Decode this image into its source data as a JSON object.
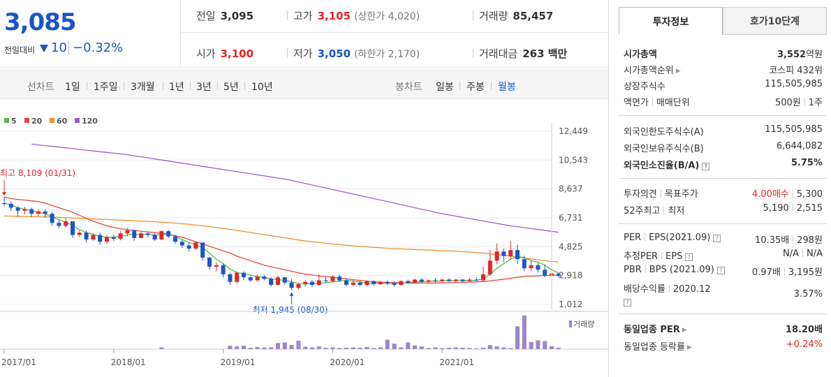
{
  "price": {
    "current": "3,085",
    "change_label": "전일대비",
    "change_amount": "10",
    "change_pct": "−0.32%",
    "down_color": "#1a56c8",
    "up_color": "#e2262a"
  },
  "summary": {
    "prev_close": {
      "label": "전일",
      "value": "3,095"
    },
    "high": {
      "label": "고가",
      "value": "3,105",
      "sub": "(상한가 4,020)"
    },
    "volume": {
      "label": "거래량",
      "value": "85,457"
    },
    "open": {
      "label": "시가",
      "value": "3,100"
    },
    "low": {
      "label": "저가",
      "value": "3,050",
      "sub": "(하한가 2,170)"
    },
    "trade_value": {
      "label": "거래대금",
      "value": "263 백만"
    }
  },
  "period_bar": {
    "line_title": "선차트",
    "line_items": [
      "1일",
      "1주일",
      "3개월",
      "1년",
      "3년",
      "5년",
      "10년"
    ],
    "candle_title": "봉차트",
    "candle_items": [
      "일봉",
      "주봉",
      "월봉"
    ],
    "candle_active": "월봉"
  },
  "chart_data": {
    "type": "candlestick",
    "legend": [
      {
        "name": "5",
        "color": "#57b84a"
      },
      {
        "name": "20",
        "color": "#e8473e"
      },
      {
        "name": "60",
        "color": "#f0902f"
      },
      {
        "name": "120",
        "color": "#a25bd0"
      }
    ],
    "y_ticks": [
      "12,449",
      "10,543",
      "8,637",
      "6,731",
      "4,825",
      "2,918",
      "1,012"
    ],
    "y_tick_values": [
      12449,
      10543,
      8637,
      6731,
      4825,
      2918,
      1012
    ],
    "ylim": [
      1012,
      12449
    ],
    "x_ticks": [
      "2017/01",
      "2018/01",
      "2019/01",
      "2020/01",
      "2021/01"
    ],
    "volume_label": "거래량",
    "high_annotation": {
      "text": "최고 8,109 (01/31)",
      "value": 8109
    },
    "low_annotation": {
      "text": "최저 1,945 (08/30)",
      "value": 1945
    },
    "candles": [
      [
        7700,
        7650,
        8109,
        7500
      ],
      [
        7650,
        7400,
        7800,
        7200
      ],
      [
        7400,
        7200,
        7500,
        6800
      ],
      [
        7200,
        7300,
        7450,
        6950
      ],
      [
        7300,
        7000,
        7400,
        6800
      ],
      [
        7000,
        7150,
        7300,
        6850
      ],
      [
        7150,
        7000,
        7300,
        6750
      ],
      [
        7000,
        6400,
        7100,
        6200
      ],
      [
        6400,
        6200,
        6600,
        6050
      ],
      [
        6200,
        6500,
        6700,
        6100
      ],
      [
        6500,
        5600,
        6500,
        5400
      ],
      [
        5600,
        5750,
        5900,
        5450
      ],
      [
        5750,
        5300,
        5900,
        5100
      ],
      [
        5300,
        5600,
        5700,
        5200
      ],
      [
        5600,
        5150,
        5750,
        4950
      ],
      [
        5150,
        5450,
        5600,
        5000
      ],
      [
        5450,
        5350,
        5600,
        5200
      ],
      [
        5350,
        5700,
        5850,
        5250
      ],
      [
        5700,
        5900,
        6050,
        5500
      ],
      [
        5900,
        5400,
        5950,
        5200
      ],
      [
        5400,
        5700,
        5800,
        5350
      ],
      [
        5700,
        5600,
        5800,
        5450
      ],
      [
        5600,
        5300,
        5700,
        5200
      ],
      [
        5300,
        5850,
        5900,
        5250
      ],
      [
        5850,
        5500,
        5950,
        5400
      ],
      [
        5500,
        5150,
        5600,
        5000
      ],
      [
        5150,
        4900,
        5250,
        4750
      ],
      [
        4900,
        4700,
        5100,
        4500
      ],
      [
        4700,
        5100,
        5200,
        4600
      ],
      [
        5100,
        4100,
        5100,
        3900
      ],
      [
        4100,
        3500,
        4150,
        3300
      ],
      [
        3500,
        3600,
        3800,
        3200
      ],
      [
        3600,
        3000,
        3700,
        2800
      ],
      [
        3000,
        2500,
        3100,
        2300
      ],
      [
        2500,
        3100,
        3200,
        2400
      ],
      [
        3100,
        2800,
        3200,
        2600
      ],
      [
        2800,
        2600,
        2900,
        2500
      ],
      [
        2600,
        2850,
        3000,
        2550
      ],
      [
        2850,
        2700,
        2950,
        2600
      ],
      [
        2700,
        2300,
        2800,
        2200
      ],
      [
        2300,
        2800,
        2900,
        2250
      ],
      [
        2800,
        2450,
        2850,
        2300
      ],
      [
        2450,
        2100,
        2700,
        1945
      ],
      [
        2100,
        2350,
        2400,
        2000
      ],
      [
        2350,
        2500,
        2600,
        2200
      ],
      [
        2500,
        2300,
        2600,
        2150
      ],
      [
        2300,
        2600,
        3000,
        2250
      ],
      [
        2600,
        2550,
        2800,
        2400
      ],
      [
        2550,
        2850,
        2950,
        2450
      ],
      [
        2850,
        2600,
        3000,
        2500
      ],
      [
        2600,
        2300,
        2700,
        2200
      ],
      [
        2300,
        2450,
        2600,
        2250
      ],
      [
        2450,
        2300,
        2550,
        2200
      ],
      [
        2300,
        2550,
        2600,
        2200
      ],
      [
        2550,
        2350,
        2600,
        2250
      ],
      [
        2350,
        2500,
        2550,
        2300
      ],
      [
        2500,
        2400,
        2600,
        2300
      ],
      [
        2400,
        2300,
        2550,
        2200
      ],
      [
        2300,
        2550,
        2600,
        2250
      ],
      [
        2550,
        2450,
        2650,
        2350
      ],
      [
        2450,
        2650,
        2700,
        2400
      ],
      [
        2650,
        2500,
        2750,
        2450
      ],
      [
        2500,
        2600,
        2650,
        2400
      ],
      [
        2600,
        2550,
        2750,
        2450
      ],
      [
        2550,
        2650,
        2700,
        2500
      ],
      [
        2650,
        2550,
        2750,
        2500
      ],
      [
        2550,
        2650,
        2700,
        2450
      ],
      [
        2650,
        2550,
        2700,
        2450
      ],
      [
        2550,
        2650,
        2750,
        2500
      ],
      [
        2650,
        2600,
        2800,
        2550
      ],
      [
        2600,
        3000,
        3500,
        2550
      ],
      [
        3000,
        3900,
        4600,
        2900
      ],
      [
        3900,
        4500,
        5050,
        3650
      ],
      [
        4500,
        4200,
        4700,
        3800
      ],
      [
        4200,
        4600,
        5200,
        3950
      ],
      [
        4600,
        4000,
        4950,
        3700
      ],
      [
        4000,
        3400,
        4250,
        3200
      ],
      [
        3400,
        3600,
        3900,
        3200
      ],
      [
        3600,
        3300,
        3750,
        3100
      ],
      [
        3300,
        2900,
        3650,
        2800
      ],
      [
        2900,
        3050,
        3150,
        2850
      ],
      [
        3050,
        2900,
        3100,
        2800
      ]
    ],
    "ma5": [
      7700,
      7600,
      7400,
      7300,
      7200,
      7100,
      7000,
      6800,
      6600,
      6450,
      6200,
      5950,
      5750,
      5650,
      5500,
      5450,
      5450,
      5500,
      5600,
      5650,
      5600,
      5650,
      5600,
      5600,
      5650,
      5500,
      5300,
      5100,
      4950,
      4750,
      4400,
      4000,
      3700,
      3350,
      3100,
      3050,
      2950,
      2850,
      2800,
      2700,
      2650,
      2600,
      2500,
      2400,
      2350,
      2400,
      2400,
      2450,
      2500,
      2550,
      2600,
      2550,
      2500,
      2400,
      2400,
      2400,
      2400,
      2400,
      2400,
      2450,
      2500,
      2500,
      2550,
      2550,
      2550,
      2600,
      2600,
      2600,
      2600,
      2600,
      2700,
      3000,
      3400,
      3700,
      4000,
      4200,
      4100,
      3900,
      3800,
      3600,
      3300,
      3100
    ],
    "ma20": [
      8100,
      8000,
      7950,
      7900,
      7850,
      7800,
      7700,
      7550,
      7400,
      7250,
      7100,
      6900,
      6700,
      6500,
      6350,
      6200,
      6100,
      6000,
      5950,
      5900,
      5850,
      5800,
      5750,
      5700,
      5650,
      5550,
      5450,
      5300,
      5150,
      5000,
      4850,
      4700,
      4550,
      4400,
      4200,
      4050,
      3900,
      3750,
      3600,
      3500,
      3400,
      3300,
      3200,
      3100,
      3000,
      2950,
      2900,
      2850,
      2800,
      2750,
      2700,
      2650,
      2600,
      2550,
      2500,
      2480,
      2460,
      2450,
      2440,
      2430,
      2420,
      2420,
      2420,
      2430,
      2440,
      2450,
      2460,
      2470,
      2480,
      2500,
      2520,
      2560,
      2620,
      2680,
      2740,
      2800,
      2850,
      2880,
      2900,
      2920,
      2930,
      2940
    ],
    "ma60": [
      6850,
      6840,
      6830,
      6820,
      6810,
      6800,
      6790,
      6780,
      6760,
      6740,
      6720,
      6700,
      6680,
      6660,
      6640,
      6620,
      6600,
      6580,
      6560,
      6540,
      6520,
      6500,
      6470,
      6440,
      6410,
      6380,
      6340,
      6300,
      6250,
      6200,
      6150,
      6090,
      6030,
      5970,
      5900,
      5830,
      5760,
      5690,
      5620,
      5550,
      5480,
      5410,
      5340,
      5270,
      5200,
      5150,
      5100,
      5050,
      5000,
      4960,
      4920,
      4880,
      4840,
      4810,
      4780,
      4750,
      4720,
      4700,
      4680,
      4660,
      4640,
      4620,
      4600,
      4580,
      4560,
      4540,
      4520,
      4500,
      4470,
      4440,
      4400,
      4350,
      4300,
      4250,
      4200,
      4140,
      4080,
      4020,
      3960,
      3900,
      3850,
      3800
    ],
    "ma120": [
      11800,
      11750,
      11700,
      11650,
      11600,
      11550,
      11500,
      11450,
      11400,
      11350,
      11300,
      11250,
      11200,
      11150,
      11100,
      11050,
      11000,
      10950,
      10900,
      10830,
      10760,
      10690,
      10620,
      10550,
      10480,
      10410,
      10340,
      10270,
      10200,
      10130,
      10060,
      9990,
      9920,
      9850,
      9780,
      9710,
      9640,
      9570,
      9500,
      9430,
      9360,
      9290,
      9200,
      9100,
      9000,
      8900,
      8800,
      8700,
      8600,
      8500,
      8400,
      8300,
      8200,
      8100,
      8000,
      7900,
      7800,
      7700,
      7600,
      7500,
      7400,
      7300,
      7200,
      7100,
      7000,
      6920,
      6840,
      6760,
      6680,
      6600,
      6520,
      6440,
      6360,
      6280,
      6200,
      6140,
      6080,
      6020,
      5960,
      5900,
      5840,
      5780
    ],
    "volume": [
      0,
      0,
      0,
      0,
      0,
      0,
      0,
      0,
      0,
      0,
      0,
      0,
      0,
      0,
      0,
      0,
      0,
      0,
      0,
      0,
      0,
      0,
      0,
      0.05,
      0,
      0,
      0,
      0,
      0,
      0,
      0,
      0,
      0,
      0.1,
      0.08,
      0.1,
      0.04,
      0.06,
      0.05,
      0.05,
      0.18,
      0.2,
      0.12,
      0.25,
      0.07,
      0.05,
      0.08,
      0.04,
      0.05,
      0.03,
      0.04,
      0.05,
      0.04,
      0.06,
      0.03,
      0.05,
      0.28,
      0.16,
      0.05,
      0.2,
      0.11,
      0.08,
      0.03,
      0.05,
      0.03,
      0.04,
      0.05,
      0.04,
      0.03,
      0.02,
      0.04,
      0.12,
      0.08,
      0.05,
      0.03,
      0.68,
      1.0,
      0.21,
      0.26,
      0.24,
      0.08,
      0.04
    ]
  },
  "side_panel": {
    "tab_active": "투자정보",
    "tab_other": "호가10단계",
    "rows": {
      "market_cap": {
        "label": "시가총액",
        "value": "3,552",
        "unit": "억원"
      },
      "market_cap_rank": {
        "label": "시가총액순위",
        "value": "코스피 432위"
      },
      "listed_shares": {
        "label": "상장주식수",
        "value": "115,505,985"
      },
      "par_label": "액면가",
      "unit_label": "매매단위",
      "par_value": "500원",
      "unit_value": "1주",
      "foreign_limit": {
        "label": "외국인한도주식수(A)",
        "value": "115,505,985"
      },
      "foreign_hold": {
        "label": "외국인보유주식수(B)",
        "value": "6,644,082"
      },
      "foreign_ratio": {
        "label": "외국인소진율(B/A)",
        "value": "5.75%"
      },
      "opinion_label": "투자의견",
      "target_label": "목표주가",
      "opinion_value": "4.00매수",
      "target_value": "5,300",
      "w52_label": "52주최고",
      "w52_low_label": "최저",
      "w52_high": "5,190",
      "w52_low": "2,515",
      "per_label": "PER",
      "eps_label": "EPS(2021.09)",
      "per_value": "10.35배",
      "eps_value": "298원",
      "est_per_label": "추정PER",
      "est_eps_label": "EPS",
      "est_per_value": "N/A",
      "est_eps_value": "N/A",
      "pbr_label": "PBR",
      "bps_label": "BPS (2021.09)",
      "pbr_value": "0.97배",
      "bps_value": "3,195원",
      "dividend_label": "배당수익률",
      "dividend_period": "2020.12",
      "dividend_value": "3.57%",
      "sector_per": {
        "label": "동일업종 PER",
        "value": "18.20배"
      },
      "sector_change": {
        "label": "동일업종 등락률",
        "value": "+0.24%"
      }
    }
  }
}
